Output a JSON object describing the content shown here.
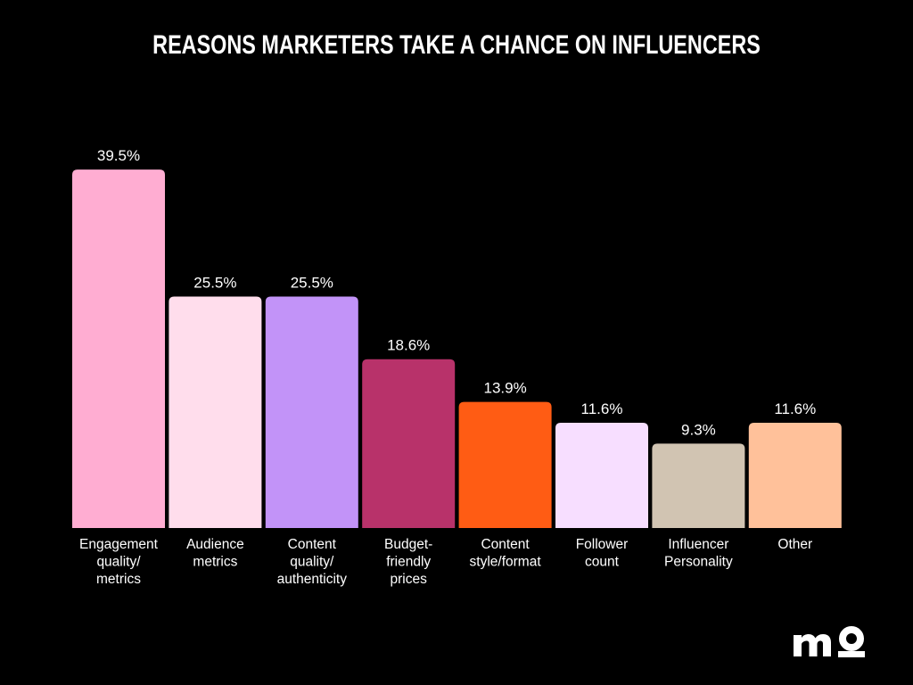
{
  "chart_data": {
    "type": "bar",
    "title": "REASONS MARKETERS TAKE A CHANCE ON INFLUENCERS",
    "xlabel": "",
    "ylabel": "",
    "ylim": [
      0,
      40
    ],
    "grid": false,
    "value_suffix": "%",
    "categories": [
      "Engagement quality/ metrics",
      "Audience metrics",
      "Content quality/ authenticity",
      "Budget- friendly prices",
      "Content style/format",
      "Follower count",
      "Influencer Personality",
      "Other"
    ],
    "category_lines": [
      [
        "Engagement",
        "quality/",
        "metrics"
      ],
      [
        "Audience",
        "metrics"
      ],
      [
        "Content",
        "quality/",
        "authenticity"
      ],
      [
        "Budget-",
        "friendly",
        "prices"
      ],
      [
        "Content",
        "style/format"
      ],
      [
        "Follower",
        "count"
      ],
      [
        "Influencer",
        "Personality"
      ],
      [
        "Other"
      ]
    ],
    "values": [
      39.5,
      25.5,
      25.5,
      18.6,
      13.9,
      11.6,
      9.3,
      11.6
    ],
    "value_labels": [
      "39.5%",
      "25.5%",
      "25.5%",
      "18.6%",
      "13.9%",
      "11.6%",
      "9.3%",
      "11.6%"
    ],
    "colors": [
      "#FFADD2",
      "#FFDDEC",
      "#C293F8",
      "#B8326A",
      "#FF5C14",
      "#F7DEFF",
      "#D1C4B2",
      "#FFC19A"
    ]
  },
  "background_color": "#000000",
  "brand": {
    "logo_icon": "mo-logo-icon",
    "color": "#ffffff"
  }
}
